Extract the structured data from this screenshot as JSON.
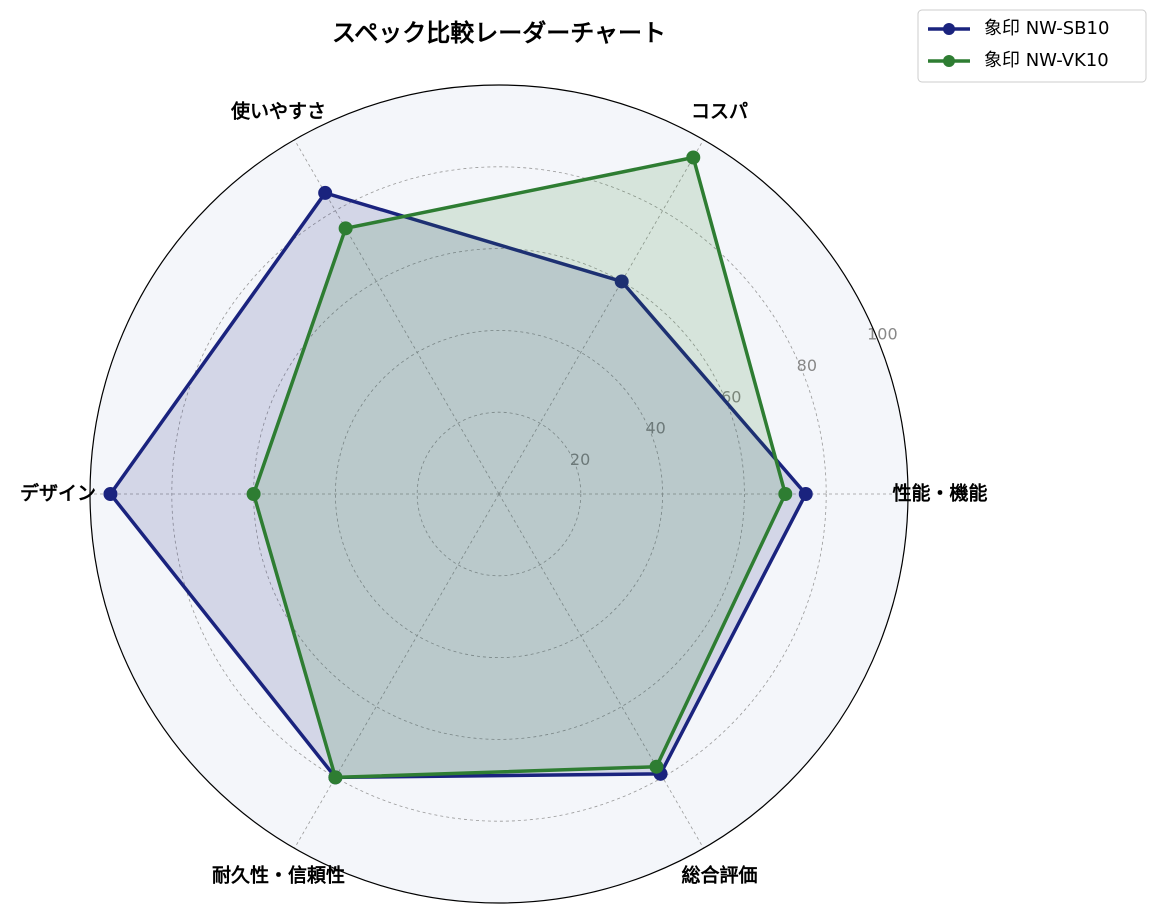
{
  "chart_data": {
    "type": "radar",
    "title": "スペック比較レーダーチャート",
    "categories": [
      "性能・機能",
      "コスパ",
      "使いやすさ",
      "デザイン",
      "耐久性・信頼性",
      "総合評価"
    ],
    "series": [
      {
        "name": "象印 NW-SB10",
        "color": "#1a237e",
        "values": [
          75,
          60,
          85,
          95,
          80,
          79
        ]
      },
      {
        "name": "象印 NW-VK10",
        "color": "#2e7d32",
        "values": [
          70,
          95,
          75,
          60,
          80,
          77
        ]
      }
    ],
    "rlim": [
      0,
      100
    ],
    "rticks": [
      20,
      40,
      60,
      80,
      100
    ],
    "grid": true,
    "legend": "upper right"
  }
}
